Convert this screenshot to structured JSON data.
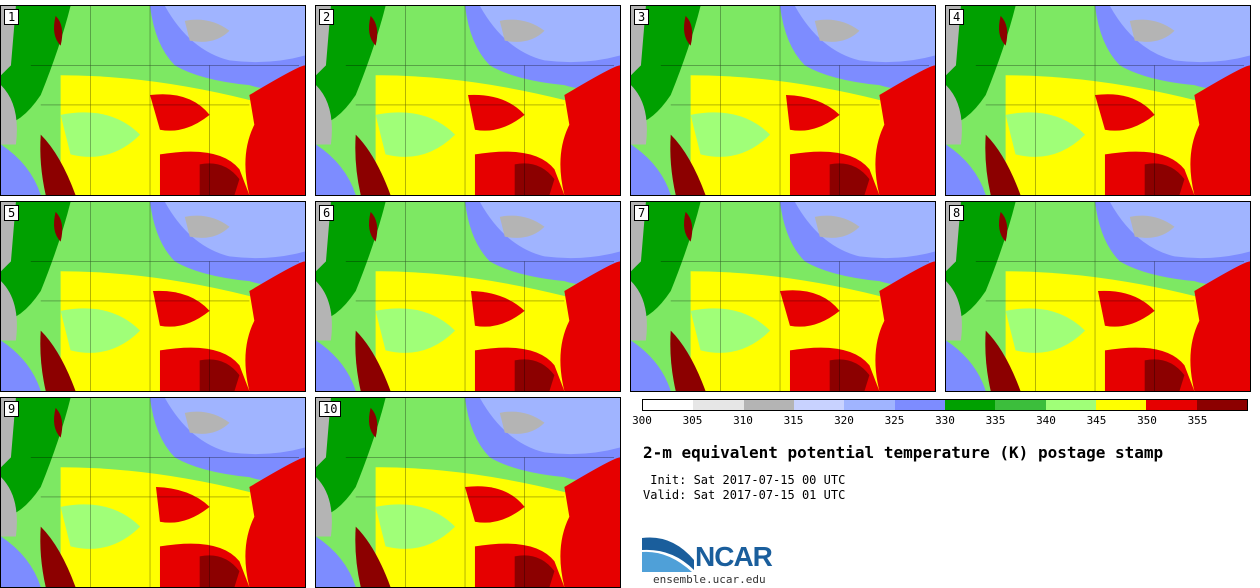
{
  "panels": [
    {
      "label": "1"
    },
    {
      "label": "2"
    },
    {
      "label": "3"
    },
    {
      "label": "4"
    },
    {
      "label": "5"
    },
    {
      "label": "6"
    },
    {
      "label": "7"
    },
    {
      "label": "8"
    },
    {
      "label": "9"
    },
    {
      "label": "10"
    }
  ],
  "colorbar": {
    "ticks": [
      "300",
      "305",
      "310",
      "315",
      "320",
      "325",
      "330",
      "335",
      "340",
      "345",
      "350",
      "355"
    ],
    "colors": [
      "#ffffff",
      "#e6e6e6",
      "#b4b4b4",
      "#c8d2ff",
      "#a0b4ff",
      "#7d8cff",
      "#00a000",
      "#3cbe3c",
      "#a0ff78",
      "#ffff00",
      "#e60000",
      "#8c0000"
    ]
  },
  "title": "2-m equivalent potential temperature (K) postage stamp",
  "init": " Init: Sat 2017-07-15 00 UTC",
  "valid": "Valid: Sat 2017-07-15 01 UTC",
  "logo": {
    "text": "NCAR",
    "site": "ensemble.ucar.edu"
  }
}
